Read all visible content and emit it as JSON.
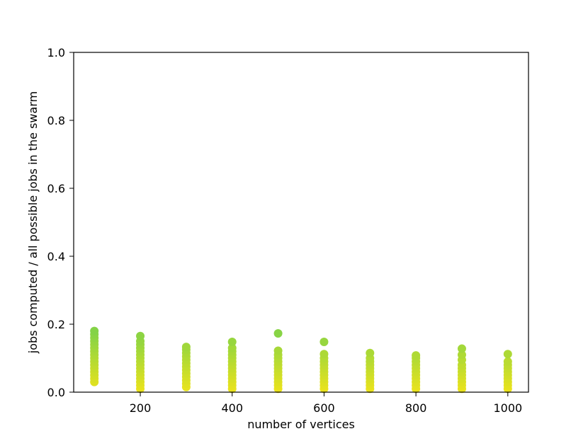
{
  "chart_data": {
    "type": "scatter",
    "title": "",
    "xlabel": "number of vertices",
    "ylabel": "jobs computed / all possible jobs in the swarm",
    "xlim": [
      55,
      1045
    ],
    "ylim": [
      0,
      1.0
    ],
    "xticks": [
      200,
      400,
      600,
      800,
      1000
    ],
    "yticks": [
      0.0,
      0.2,
      0.4,
      0.6,
      0.8,
      1.0
    ],
    "xtick_labels": [
      "200",
      "400",
      "600",
      "800",
      "1000"
    ],
    "ytick_labels": [
      "0.0",
      "0.2",
      "0.4",
      "0.6",
      "0.8",
      "1.0"
    ],
    "grid": false,
    "legend": "none",
    "color_scale": {
      "low": "#f0e41a",
      "high": "#7ed249"
    },
    "groups": [
      {
        "x": 100,
        "y": [
          0.03,
          0.04,
          0.05,
          0.06,
          0.07,
          0.08,
          0.09,
          0.1,
          0.11,
          0.12,
          0.13,
          0.14,
          0.15,
          0.16,
          0.17,
          0.18
        ]
      },
      {
        "x": 200,
        "y": [
          0.01,
          0.02,
          0.03,
          0.04,
          0.05,
          0.06,
          0.07,
          0.08,
          0.09,
          0.1,
          0.11,
          0.12,
          0.13,
          0.14,
          0.15,
          0.165
        ]
      },
      {
        "x": 300,
        "y": [
          0.015,
          0.025,
          0.035,
          0.045,
          0.055,
          0.065,
          0.075,
          0.085,
          0.095,
          0.105,
          0.115,
          0.125,
          0.133
        ]
      },
      {
        "x": 400,
        "y": [
          0.01,
          0.02,
          0.03,
          0.04,
          0.05,
          0.06,
          0.07,
          0.08,
          0.09,
          0.1,
          0.11,
          0.12,
          0.13,
          0.148
        ]
      },
      {
        "x": 500,
        "y": [
          0.01,
          0.02,
          0.03,
          0.04,
          0.05,
          0.06,
          0.07,
          0.08,
          0.09,
          0.1,
          0.11,
          0.122,
          0.173
        ]
      },
      {
        "x": 600,
        "y": [
          0.01,
          0.02,
          0.03,
          0.04,
          0.05,
          0.06,
          0.07,
          0.08,
          0.09,
          0.1,
          0.112,
          0.148
        ]
      },
      {
        "x": 700,
        "y": [
          0.01,
          0.02,
          0.03,
          0.04,
          0.05,
          0.06,
          0.07,
          0.08,
          0.09,
          0.1,
          0.115
        ]
      },
      {
        "x": 800,
        "y": [
          0.01,
          0.02,
          0.03,
          0.04,
          0.05,
          0.06,
          0.07,
          0.08,
          0.09,
          0.1,
          0.108
        ]
      },
      {
        "x": 900,
        "y": [
          0.01,
          0.02,
          0.03,
          0.04,
          0.05,
          0.06,
          0.07,
          0.08,
          0.095,
          0.11,
          0.128
        ]
      },
      {
        "x": 1000,
        "y": [
          0.01,
          0.02,
          0.03,
          0.04,
          0.05,
          0.06,
          0.07,
          0.08,
          0.09,
          0.112
        ]
      }
    ]
  }
}
